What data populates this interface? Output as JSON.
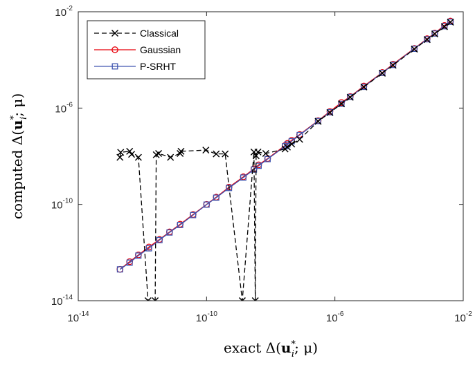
{
  "chart_data": {
    "type": "scatter",
    "title": "",
    "xlabel": "exact Δ(u*_i; μ)",
    "ylabel": "computed Δ(u*_i; μ)",
    "xlabel_parts": {
      "pre": "exact Δ(",
      "bold": "u",
      "sup": "*",
      "sub": "i",
      "post": "; μ)"
    },
    "ylabel_parts": {
      "pre": "computed Δ(",
      "bold": "u",
      "sup": "*",
      "sub": "i",
      "post": "; μ)"
    },
    "xscale": "log",
    "yscale": "log",
    "xlim": [
      1e-14,
      0.01
    ],
    "ylim": [
      1e-14,
      0.01
    ],
    "x_tick_exponents": [
      -14,
      -10,
      -6,
      -2
    ],
    "y_tick_exponents": [
      -14,
      -10,
      -6,
      -2
    ],
    "grid": false,
    "legend_position": "top-left",
    "series": [
      {
        "name": "Classical",
        "color": "#000000",
        "line": "dash-dot",
        "marker": "x",
        "points": [
          [
            2e-13,
            9e-09
          ],
          [
            2.1e-13,
            1.45e-08
          ],
          [
            4e-13,
            1.6e-08
          ],
          [
            4.6e-13,
            1.2e-08
          ],
          [
            7.5e-13,
            9e-09
          ],
          [
            1.5e-12,
            1e-14
          ],
          [
            2.5e-12,
            1e-14
          ],
          [
            2.7e-12,
            1.15e-08
          ],
          [
            3.2e-12,
            1.3e-08
          ],
          [
            7.5e-12,
            9e-09
          ],
          [
            1.5e-11,
            1.3e-08
          ],
          [
            1.6e-11,
            1.6e-08
          ],
          [
            9.5e-11,
            1.8e-08
          ],
          [
            2e-10,
            1.25e-08
          ],
          [
            3.8e-10,
            1.25e-08
          ],
          [
            1.3e-09,
            1e-14
          ],
          [
            3e-09,
            1.5e-08
          ],
          [
            3.3e-09,
            1e-14
          ],
          [
            3.5e-09,
            1.05e-08
          ],
          [
            4e-09,
            1.5e-08
          ],
          [
            7e-09,
            1.3e-08
          ],
          [
            2.8e-08,
            2e-08
          ],
          [
            3.3e-08,
            2.4e-08
          ],
          [
            4.5e-08,
            3.2e-08
          ],
          [
            8e-08,
            5e-08
          ],
          [
            3e-07,
            2.8e-07
          ],
          [
            7e-07,
            6.5e-07
          ],
          [
            1.6e-06,
            1.5e-06
          ],
          [
            3e-06,
            2.8e-06
          ],
          [
            8e-06,
            7.5e-06
          ],
          [
            3e-05,
            2.8e-05
          ],
          [
            6.5e-05,
            6e-05
          ],
          [
            0.0003,
            0.00028
          ],
          [
            0.00075,
            0.0007
          ],
          [
            0.0013,
            0.0012
          ],
          [
            0.0026,
            0.0024
          ],
          [
            0.004,
            0.0037
          ]
        ]
      },
      {
        "name": "Gaussian",
        "color": "#e8000b",
        "line": "solid",
        "marker": "circle",
        "points": [
          [
            2e-13,
            2e-13
          ],
          [
            4e-13,
            4.2e-13
          ],
          [
            7.5e-13,
            8e-13
          ],
          [
            1.6e-12,
            1.7e-12
          ],
          [
            3.4e-12,
            3.5e-12
          ],
          [
            7e-12,
            7.2e-12
          ],
          [
            1.5e-11,
            1.5e-11
          ],
          [
            3.8e-11,
            3.8e-11
          ],
          [
            1e-10,
            1e-10
          ],
          [
            2e-10,
            2e-10
          ],
          [
            5e-10,
            5.2e-10
          ],
          [
            1.4e-09,
            1.4e-09
          ],
          [
            3e-09,
            3e-09
          ],
          [
            4.2e-09,
            4.4e-09
          ],
          [
            8e-09,
            8e-09
          ],
          [
            2.8e-08,
            2.8e-08
          ],
          [
            3.3e-08,
            3.4e-08
          ],
          [
            4.5e-08,
            4.6e-08
          ],
          [
            8e-08,
            8e-08
          ],
          [
            3e-07,
            3e-07
          ],
          [
            7e-07,
            7.2e-07
          ],
          [
            1.6e-06,
            1.7e-06
          ],
          [
            3e-06,
            3e-06
          ],
          [
            8e-06,
            8.2e-06
          ],
          [
            3e-05,
            3e-05
          ],
          [
            6.5e-05,
            6.6e-05
          ],
          [
            0.0003,
            0.0003
          ],
          [
            0.00075,
            0.00076
          ],
          [
            0.0013,
            0.0013
          ],
          [
            0.0026,
            0.0027
          ],
          [
            0.004,
            0.0041
          ]
        ]
      },
      {
        "name": "P-SRHT",
        "color": "#4056b0",
        "line": "solid",
        "marker": "square",
        "points": [
          [
            2e-13,
            2e-13
          ],
          [
            4e-13,
            3.8e-13
          ],
          [
            7.5e-13,
            7.5e-13
          ],
          [
            1.6e-12,
            1.5e-12
          ],
          [
            3.4e-12,
            3.3e-12
          ],
          [
            7e-12,
            6.8e-12
          ],
          [
            1.5e-11,
            1.4e-11
          ],
          [
            3.8e-11,
            3.6e-11
          ],
          [
            1e-10,
            9.8e-11
          ],
          [
            2e-10,
            1.9e-10
          ],
          [
            5e-10,
            4.8e-10
          ],
          [
            1.4e-09,
            1.3e-09
          ],
          [
            3e-09,
            2.8e-09
          ],
          [
            4.2e-09,
            4e-09
          ],
          [
            8e-09,
            7.6e-09
          ],
          [
            2.8e-08,
            2.6e-08
          ],
          [
            3.3e-08,
            3.1e-08
          ],
          [
            4.5e-08,
            4.2e-08
          ],
          [
            8e-08,
            7.6e-08
          ],
          [
            3e-07,
            2.9e-07
          ],
          [
            7e-07,
            6.7e-07
          ],
          [
            1.6e-06,
            1.5e-06
          ],
          [
            3e-06,
            2.9e-06
          ],
          [
            8e-06,
            7.6e-06
          ],
          [
            3e-05,
            2.9e-05
          ],
          [
            6.5e-05,
            6.2e-05
          ],
          [
            0.0003,
            0.00029
          ],
          [
            0.00075,
            0.00072
          ],
          [
            0.0013,
            0.00125
          ],
          [
            0.0026,
            0.0025
          ],
          [
            0.004,
            0.00385
          ]
        ]
      }
    ]
  }
}
